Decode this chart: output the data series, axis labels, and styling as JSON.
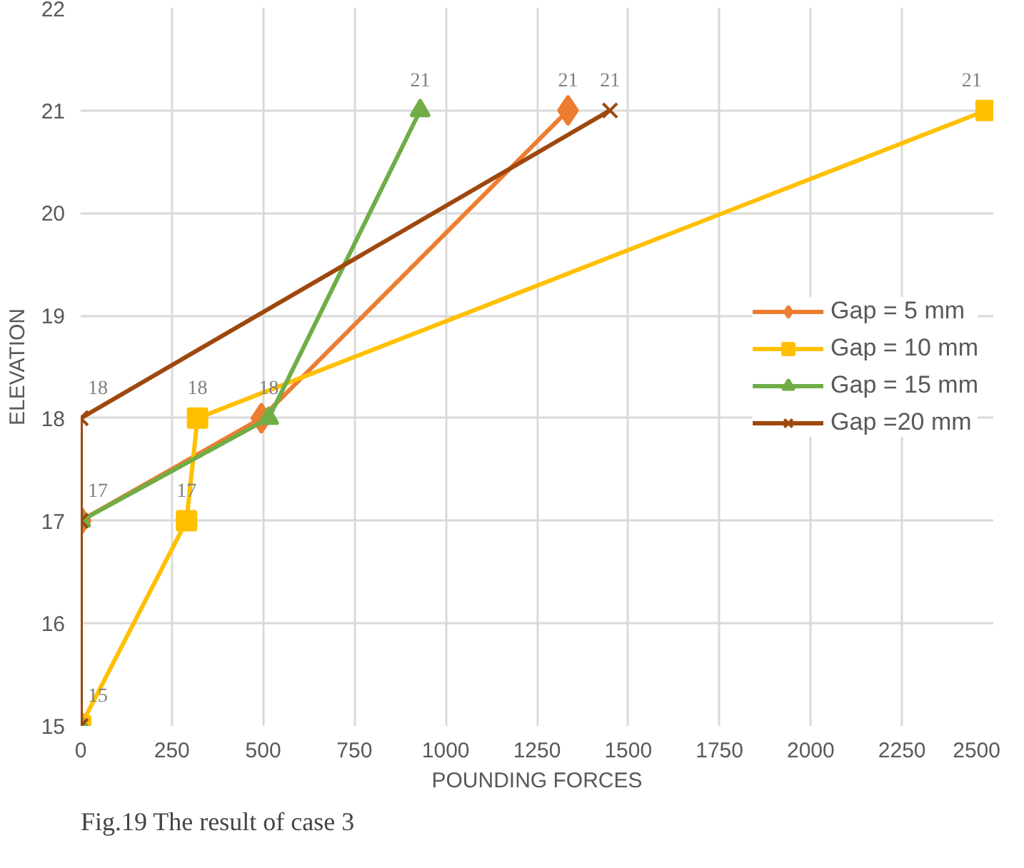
{
  "chart_data": {
    "type": "line",
    "xlabel": "POUNDING FORCES",
    "ylabel": "ELEVATION",
    "annotations": [
      "Fig.19 The result of case 3"
    ],
    "xlim": [
      0,
      2500
    ],
    "xticks": [
      0,
      250,
      500,
      750,
      1000,
      1250,
      1500,
      1750,
      2000,
      2250,
      2500
    ],
    "ylim": [
      15,
      22
    ],
    "yticks": [
      15,
      16,
      17,
      18,
      19,
      20,
      21,
      22
    ],
    "grid": true,
    "legend": "right",
    "series": [
      {
        "name": "Gap = 5 mm",
        "color": "#ed7d31",
        "marker": "diamond",
        "x": [
          0,
          0,
          495,
          1335
        ],
        "values": [
          15,
          17,
          18,
          21
        ],
        "value_labels": [
          null,
          null,
          null,
          "21"
        ]
      },
      {
        "name": "Gap = 10 mm",
        "color": "#ffc000",
        "marker": "square",
        "x": [
          0,
          290,
          320,
          2480
        ],
        "values": [
          15,
          17,
          18,
          21
        ],
        "value_labels": [
          null,
          "17",
          "18",
          "21"
        ]
      },
      {
        "name": "Gap = 15 mm",
        "color": "#70ad47",
        "marker": "triangle",
        "x": [
          0,
          0,
          515,
          930
        ],
        "values": [
          15,
          17,
          18,
          21
        ],
        "value_labels": [
          null,
          "17",
          "18",
          "21"
        ]
      },
      {
        "name": "Gap =20 mm",
        "color": "#9e480e",
        "marker": "cross",
        "x": [
          0,
          0,
          0,
          1450
        ],
        "values": [
          15,
          17,
          18,
          21
        ],
        "value_labels": [
          "15",
          null,
          "18",
          "21"
        ]
      }
    ]
  }
}
